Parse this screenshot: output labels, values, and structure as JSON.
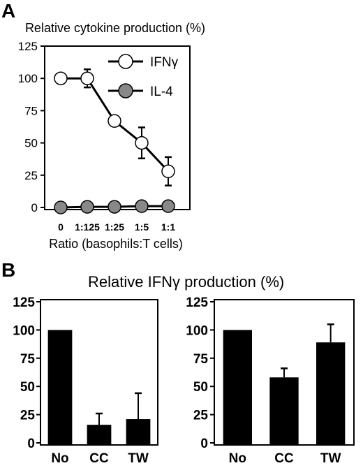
{
  "panels": {
    "a": {
      "letter": "A"
    },
    "b": {
      "letter": "B",
      "title": "Relative IFNγ production (%)"
    }
  },
  "chart_data": [
    {
      "type": "line",
      "panel": "A",
      "title": "Relative cytokine production (%)",
      "xlabel": "Ratio (basophils:T cells)",
      "ylabel": "",
      "categories": [
        "0",
        "1:125",
        "1:25",
        "1:5",
        "1:1"
      ],
      "ylim": [
        0,
        125
      ],
      "yticks": [
        0,
        25,
        50,
        75,
        100,
        125
      ],
      "legend_position": "top-right",
      "series": [
        {
          "name": "IFNγ",
          "marker": "open-circle",
          "color": "#ffffff",
          "values": [
            100,
            100,
            67,
            50,
            28
          ],
          "error": [
            0,
            7,
            0,
            12,
            11
          ]
        },
        {
          "name": "IL-4",
          "marker": "filled-circle",
          "color": "#888888",
          "values": [
            0,
            0.5,
            0.5,
            1,
            1
          ],
          "error": [
            0,
            0,
            0,
            0,
            0
          ]
        }
      ]
    },
    {
      "type": "bar",
      "panel": "B-left",
      "title": "",
      "xlabel": "",
      "ylabel": "",
      "categories": [
        "No",
        "CC",
        "TW"
      ],
      "ylim": [
        0,
        125
      ],
      "yticks": [
        0,
        25,
        50,
        75,
        100,
        125
      ],
      "values": [
        100,
        16,
        21
      ],
      "error": [
        0,
        10,
        23
      ],
      "bar_color": "#000000"
    },
    {
      "type": "bar",
      "panel": "B-right",
      "title": "",
      "xlabel": "",
      "ylabel": "",
      "categories": [
        "No",
        "CC",
        "TW"
      ],
      "ylim": [
        0,
        125
      ],
      "yticks": [
        0,
        25,
        50,
        75,
        100,
        125
      ],
      "values": [
        100,
        58,
        89
      ],
      "error": [
        0,
        8,
        16
      ],
      "bar_color": "#000000"
    }
  ]
}
